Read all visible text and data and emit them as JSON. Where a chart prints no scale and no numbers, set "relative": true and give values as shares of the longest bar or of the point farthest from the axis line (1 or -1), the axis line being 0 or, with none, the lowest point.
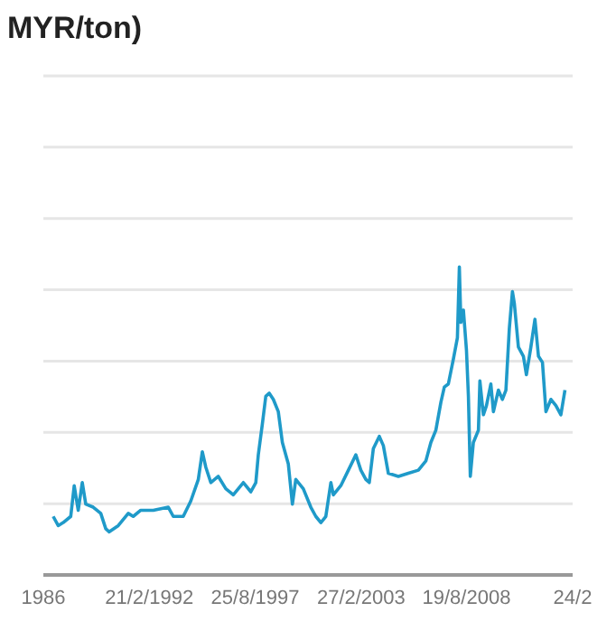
{
  "chart_data": {
    "type": "line",
    "title": "MYR/ton)",
    "relative": true,
    "grid": "y",
    "marker": "none",
    "line_style": "solid",
    "xlim": [
      "1986-08-21",
      "2014-02-24"
    ],
    "xticks": [
      {
        "value": "1986-08-21",
        "label": "1986"
      },
      {
        "value": "1992-02-21",
        "label": "21/2/1992"
      },
      {
        "value": "1997-08-25",
        "label": "25/8/1997"
      },
      {
        "value": "2003-02-27",
        "label": "27/2/2003"
      },
      {
        "value": "2008-08-19",
        "label": "19/8/2008"
      },
      {
        "value": "2014-02-24",
        "label": "24/2"
      }
    ],
    "x": [
      "1987-02-24",
      "1987-05-30",
      "1987-09-02",
      "1988-01-23",
      "1988-03-29",
      "1988-06-13",
      "1988-08-29",
      "1988-11-03",
      "1989-03-25",
      "1989-08-15",
      "1989-11-18",
      "1990-01-23",
      "1990-07-13",
      "1991-01-19",
      "1991-04-23",
      "1991-09-13",
      "1992-05-08",
      "1993-02-17",
      "1993-05-23",
      "1993-11-28",
      "1994-04-20",
      "1994-09-10",
      "1994-11-25",
      "1995-01-30",
      "1995-05-05",
      "1995-09-24",
      "1996-02-14",
      "1996-07-05",
      "1997-01-12",
      "1997-06-03",
      "1997-09-06",
      "1997-10-23",
      "1998-01-08",
      "1998-03-14",
      "1998-05-19",
      "1998-08-04",
      "1998-11-07",
      "1999-01-23",
      "1999-05-16",
      "1999-08-01",
      "1999-10-05",
      "2000-02-24",
      "2000-07-16",
      "2000-10-19",
      "2001-01-23",
      "2001-04-27",
      "2001-08-01",
      "2001-09-17",
      "2002-02-06",
      "2002-06-29",
      "2002-11-18",
      "2003-02-21",
      "2003-05-27",
      "2003-07-31",
      "2003-10-16",
      "2004-02-06",
      "2004-04-23",
      "2004-07-27",
      "2005-02-02",
      "2005-08-11",
      "2006-02-17",
      "2006-07-09",
      "2006-10-12",
      "2007-01-15",
      "2007-04-20",
      "2007-06-25",
      "2007-09-09",
      "2007-12-13",
      "2008-02-28",
      "2008-04-05",
      "2008-05-04",
      "2008-06-21",
      "2008-08-18",
      "2008-09-24",
      "2008-10-30",
      "2008-12-27",
      "2009-04-02",
      "2009-04-30",
      "2009-07-05",
      "2009-09-02",
      "2009-11-24",
      "2010-01-12",
      "2010-04-16",
      "2010-07-01",
      "2010-09-06",
      "2010-11-10",
      "2011-01-08",
      "2011-02-14",
      "2011-05-01",
      "2011-08-04",
      "2011-09-30",
      "2011-12-24",
      "2012-03-10",
      "2012-05-16",
      "2012-07-31",
      "2012-10-05",
      "2013-01-08",
      "2013-04-12",
      "2013-07-16",
      "2013-10-01"
    ],
    "series": [
      {
        "color": "#1f9ac9",
        "values": [
          0.19,
          0.16,
          0.17,
          0.19,
          0.29,
          0.21,
          0.3,
          0.23,
          0.22,
          0.2,
          0.15,
          0.14,
          0.16,
          0.2,
          0.19,
          0.21,
          0.21,
          0.22,
          0.19,
          0.19,
          0.24,
          0.31,
          0.4,
          0.35,
          0.3,
          0.32,
          0.28,
          0.26,
          0.3,
          0.27,
          0.3,
          0.39,
          0.49,
          0.58,
          0.59,
          0.57,
          0.53,
          0.43,
          0.36,
          0.23,
          0.31,
          0.28,
          0.22,
          0.19,
          0.17,
          0.19,
          0.3,
          0.26,
          0.29,
          0.34,
          0.39,
          0.34,
          0.31,
          0.3,
          0.41,
          0.45,
          0.42,
          0.33,
          0.32,
          0.33,
          0.34,
          0.37,
          0.43,
          0.47,
          0.56,
          0.61,
          0.62,
          0.7,
          0.77,
          1,
          0.82,
          0.86,
          0.73,
          0.58,
          0.32,
          0.43,
          0.47,
          0.63,
          0.52,
          0.55,
          0.62,
          0.53,
          0.6,
          0.57,
          0.6,
          0.8,
          0.92,
          0.88,
          0.74,
          0.71,
          0.65,
          0.74,
          0.83,
          0.71,
          0.69,
          0.53,
          0.57,
          0.55,
          0.52,
          0.6
        ]
      }
    ]
  }
}
